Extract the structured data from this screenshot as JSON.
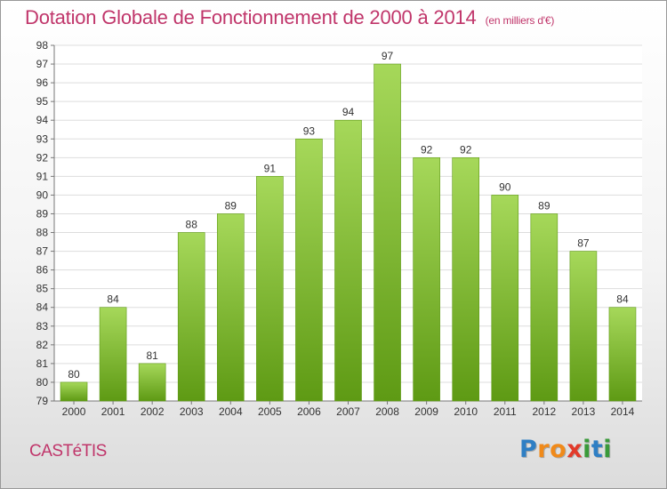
{
  "page": {
    "commune": "CASTéTIS",
    "logo": {
      "letters": [
        "P",
        "r",
        "o",
        "x",
        "i",
        "t",
        "i"
      ],
      "colors": [
        "#2f7fc4",
        "#f08a1a",
        "#f08a1a",
        "#e23a2a",
        "#3a9a3a",
        "#2f7fc4",
        "#3a9a3a"
      ]
    }
  },
  "chart_data": {
    "type": "bar",
    "title": "Dotation Globale de Fonctionnement de 2000 à 2014",
    "unit": "(en milliers d'€)",
    "categories": [
      "2000",
      "2001",
      "2002",
      "2003",
      "2004",
      "2005",
      "2006",
      "2007",
      "2008",
      "2009",
      "2010",
      "2011",
      "2012",
      "2013",
      "2014"
    ],
    "values": [
      80,
      84,
      81,
      88,
      89,
      91,
      93,
      94,
      97,
      92,
      92,
      90,
      89,
      87,
      84
    ],
    "ylim": [
      79,
      98
    ],
    "yticks": [
      79,
      80,
      81,
      82,
      83,
      84,
      85,
      86,
      87,
      88,
      89,
      90,
      91,
      92,
      93,
      94,
      95,
      96,
      97,
      98
    ],
    "grid": true,
    "bar_color_top": "#a6d85a",
    "bar_color_bottom": "#5e9a14",
    "title_color": "#c0356a"
  }
}
